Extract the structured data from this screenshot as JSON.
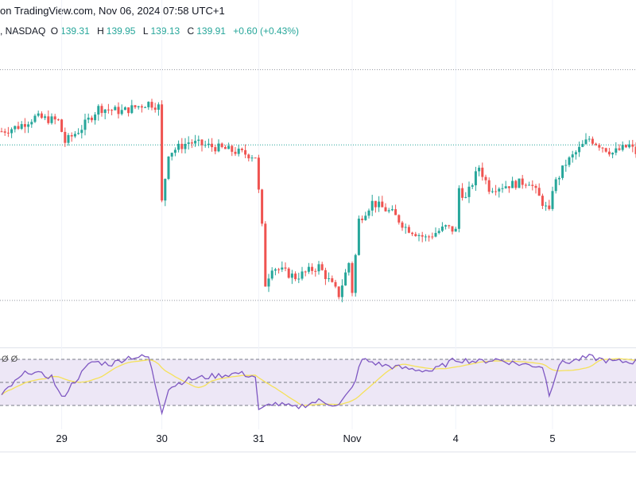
{
  "header": {
    "source": "on TradingView.com, Nov 06, 2024 07:58 UTC+1",
    "exchange": ", NASDAQ",
    "o_label": "O",
    "o": "139.31",
    "h_label": "H",
    "h": "139.95",
    "l_label": "L",
    "l": "139.13",
    "c_label": "C",
    "c": "139.91",
    "change": "+0.60 (+0.43%)"
  },
  "rsi_label": "Ø Ø",
  "colors": {
    "up": "#26a69a",
    "down": "#ef5350",
    "rsi": "#7e57c2",
    "rsi_ma": "#f5e15a",
    "band": "#ede7f6"
  },
  "chart_data": {
    "type": "candlestick",
    "bars": 191,
    "price_keypoints": [
      [
        0,
        140.53
      ],
      [
        5,
        140.72
      ],
      [
        10,
        141.08
      ],
      [
        17,
        140.94
      ],
      [
        19,
        140.11
      ],
      [
        24,
        140.67
      ],
      [
        29,
        141.44
      ],
      [
        36,
        141.31
      ],
      [
        44,
        141.64
      ],
      [
        47,
        141.5
      ],
      [
        48,
        137.75
      ],
      [
        50,
        139.69
      ],
      [
        56,
        140.11
      ],
      [
        67,
        139.83
      ],
      [
        76,
        139.56
      ],
      [
        77,
        138.17
      ],
      [
        78,
        136.78
      ],
      [
        79,
        134.56
      ],
      [
        81,
        135.25
      ],
      [
        88,
        134.83
      ],
      [
        95,
        135.25
      ],
      [
        101,
        134.14
      ],
      [
        104,
        135.39
      ],
      [
        105,
        134.28
      ],
      [
        107,
        137.06
      ],
      [
        111,
        137.75
      ],
      [
        117,
        137.33
      ],
      [
        121,
        136.78
      ],
      [
        127,
        136.36
      ],
      [
        133,
        136.78
      ],
      [
        136,
        136.64
      ],
      [
        137,
        138.31
      ],
      [
        139,
        137.89
      ],
      [
        143,
        139.14
      ],
      [
        146,
        138.31
      ],
      [
        152,
        138.44
      ],
      [
        158,
        138.58
      ],
      [
        164,
        137.33
      ],
      [
        165,
        138.31
      ],
      [
        169,
        139.28
      ],
      [
        176,
        140.25
      ],
      [
        183,
        139.69
      ],
      [
        188,
        139.97
      ],
      [
        190,
        139.69
      ]
    ],
    "price_range": [
      132.3,
      143.8
    ],
    "horizontal_levels": [
      142.94,
      140.0,
      133.92
    ],
    "rsi": {
      "keypoints": [
        [
          0,
          38
        ],
        [
          2,
          45
        ],
        [
          6,
          55
        ],
        [
          8,
          60
        ],
        [
          11,
          57
        ],
        [
          15,
          55
        ],
        [
          18,
          36
        ],
        [
          21,
          48
        ],
        [
          27,
          68
        ],
        [
          33,
          66
        ],
        [
          38,
          72
        ],
        [
          44,
          72
        ],
        [
          48,
          25
        ],
        [
          50,
          45
        ],
        [
          55,
          52
        ],
        [
          62,
          55
        ],
        [
          71,
          58
        ],
        [
          76,
          55
        ],
        [
          77,
          25
        ],
        [
          81,
          32
        ],
        [
          88,
          28
        ],
        [
          95,
          34
        ],
        [
          101,
          30
        ],
        [
          105,
          45
        ],
        [
          108,
          70
        ],
        [
          114,
          65
        ],
        [
          121,
          62
        ],
        [
          129,
          60
        ],
        [
          136,
          70
        ],
        [
          143,
          68
        ],
        [
          148,
          70
        ],
        [
          155,
          66
        ],
        [
          162,
          64
        ],
        [
          164,
          40
        ],
        [
          167,
          66
        ],
        [
          176,
          72
        ],
        [
          183,
          68
        ],
        [
          190,
          68
        ]
      ],
      "levels": [
        70,
        50,
        30
      ],
      "ma_length": 14
    },
    "x_ticks": [
      {
        "label": "29",
        "bar": 18
      },
      {
        "label": "30",
        "bar": 48
      },
      {
        "label": "31",
        "bar": 77
      },
      {
        "label": "Nov",
        "bar": 105
      },
      {
        "label": "4",
        "bar": 136
      },
      {
        "label": "5",
        "bar": 165
      }
    ]
  }
}
